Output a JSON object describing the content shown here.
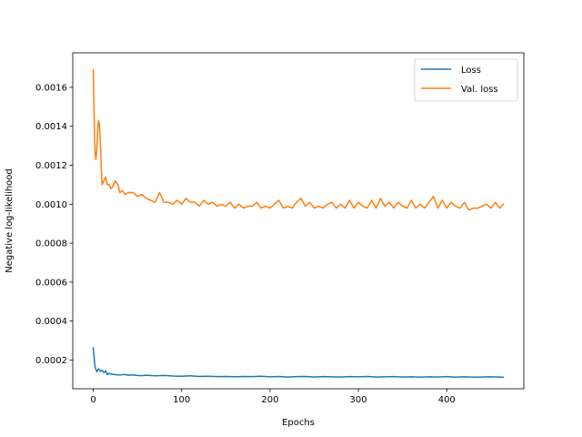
{
  "chart_data": {
    "type": "line",
    "title": "",
    "xlabel": "Epochs",
    "ylabel": "Negative log-likelihood",
    "xlim": [
      -23.2,
      487.2
    ],
    "ylim": [
      5.26e-05,
      0.0017774
    ],
    "xticks": [
      0,
      100,
      200,
      300,
      400
    ],
    "yticks": [
      0.0002,
      0.0004,
      0.0006,
      0.0008,
      0.001,
      0.0012,
      0.0014,
      0.0016
    ],
    "ytick_labels": [
      "0.0002",
      "0.0004",
      "0.0006",
      "0.0008",
      "0.0010",
      "0.0012",
      "0.0014",
      "0.0016"
    ],
    "grid": false,
    "legend_position": "top-right",
    "series": [
      {
        "name": "Loss",
        "color": "#1f77b4",
        "x": [
          0,
          2,
          4,
          6,
          8,
          10,
          12,
          14,
          16,
          18,
          20,
          25,
          30,
          35,
          40,
          45,
          50,
          55,
          60,
          70,
          80,
          90,
          100,
          110,
          120,
          130,
          140,
          150,
          160,
          170,
          180,
          190,
          200,
          210,
          220,
          230,
          240,
          250,
          260,
          270,
          280,
          290,
          300,
          310,
          320,
          330,
          340,
          350,
          360,
          370,
          380,
          390,
          400,
          410,
          420,
          430,
          440,
          450,
          464
        ],
        "y": [
          0.000262,
          0.000165,
          0.00014,
          0.000155,
          0.000142,
          0.000148,
          0.000135,
          0.000145,
          0.000125,
          0.000132,
          0.000128,
          0.000125,
          0.000123,
          0.000126,
          0.000122,
          0.000124,
          0.000121,
          0.00012,
          0.000122,
          0.000119,
          0.000121,
          0.000118,
          0.000117,
          0.000119,
          0.000116,
          0.000117,
          0.000115,
          0.000116,
          0.000114,
          0.000116,
          0.000115,
          0.000117,
          0.000114,
          0.000116,
          0.000113,
          0.000115,
          0.000116,
          0.000113,
          0.000115,
          0.000114,
          0.000113,
          0.000115,
          0.000114,
          0.000116,
          0.000113,
          0.000114,
          0.000115,
          0.000113,
          0.000114,
          0.000112,
          0.000114,
          0.000113,
          0.000115,
          0.000112,
          0.000114,
          0.000112,
          0.000113,
          0.000114,
          0.000112
        ]
      },
      {
        "name": "Val. loss",
        "color": "#ff7f0e",
        "x": [
          0,
          1,
          2,
          3,
          4,
          5,
          6,
          7,
          8,
          9,
          10,
          12,
          14,
          16,
          18,
          20,
          22,
          25,
          28,
          30,
          33,
          36,
          40,
          45,
          50,
          55,
          60,
          65,
          70,
          75,
          80,
          85,
          90,
          95,
          100,
          105,
          110,
          115,
          120,
          125,
          130,
          135,
          140,
          145,
          150,
          155,
          160,
          165,
          170,
          175,
          180,
          185,
          190,
          195,
          200,
          205,
          210,
          215,
          220,
          225,
          230,
          235,
          240,
          245,
          250,
          255,
          260,
          265,
          270,
          275,
          280,
          285,
          290,
          295,
          300,
          305,
          310,
          315,
          320,
          325,
          330,
          335,
          340,
          345,
          350,
          355,
          360,
          365,
          370,
          375,
          380,
          385,
          390,
          395,
          400,
          405,
          410,
          415,
          420,
          425,
          430,
          435,
          440,
          445,
          450,
          455,
          460,
          464
        ],
        "y": [
          0.00169,
          0.00145,
          0.00127,
          0.00123,
          0.00128,
          0.00138,
          0.00143,
          0.00141,
          0.00132,
          0.0012,
          0.0011,
          0.00112,
          0.00114,
          0.0011,
          0.0011,
          0.00108,
          0.00109,
          0.00112,
          0.0011,
          0.00106,
          0.00107,
          0.00105,
          0.00106,
          0.00106,
          0.00104,
          0.00105,
          0.00103,
          0.00102,
          0.00101,
          0.00106,
          0.00101,
          0.00101,
          0.001,
          0.00102,
          0.001,
          0.00103,
          0.00101,
          0.00101,
          0.00099,
          0.00102,
          0.001,
          0.00101,
          0.00099,
          0.001,
          0.00099,
          0.00101,
          0.00098,
          0.001,
          0.00098,
          0.00099,
          0.00099,
          0.00101,
          0.00098,
          0.00099,
          0.00098,
          0.001,
          0.00102,
          0.00098,
          0.00099,
          0.00098,
          0.00101,
          0.00103,
          0.00099,
          0.00101,
          0.00098,
          0.00099,
          0.00098,
          0.001,
          0.00101,
          0.00098,
          0.001,
          0.00098,
          0.00102,
          0.00098,
          0.00101,
          0.00099,
          0.00098,
          0.00102,
          0.00098,
          0.00103,
          0.00099,
          0.00101,
          0.00098,
          0.00101,
          0.00099,
          0.00098,
          0.00102,
          0.00098,
          0.001,
          0.00098,
          0.00101,
          0.00104,
          0.00098,
          0.00102,
          0.00098,
          0.00101,
          0.00099,
          0.00098,
          0.00101,
          0.00097,
          0.00098,
          0.00098,
          0.00099,
          0.001,
          0.00098,
          0.00101,
          0.00098,
          0.001
        ]
      }
    ]
  }
}
